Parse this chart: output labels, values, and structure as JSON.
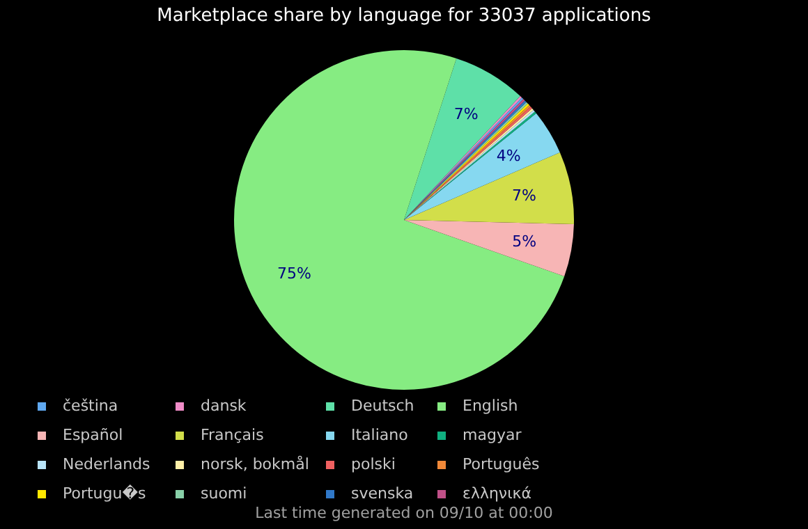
{
  "chart_data": {
    "type": "pie",
    "title": "Marketplace share by language for 33037 applications",
    "categories": [
      "čeština",
      "dansk",
      "Deutsch",
      "English",
      "Español",
      "Français",
      "Italiano",
      "magyar",
      "Nederlands",
      "norsk, bokmål",
      "polski",
      "Português",
      "Portugu�s",
      "suomi",
      "svenska",
      "ελληνικά"
    ],
    "values": [
      0.2,
      0.2,
      7.0,
      74.6,
      5.0,
      6.9,
      4.3,
      0.2,
      0.2,
      0.2,
      0.2,
      0.2,
      0.2,
      0.2,
      0.2,
      0.2
    ],
    "value_labels": [
      null,
      null,
      "7%",
      "75%",
      "5%",
      "7%",
      "4%",
      null,
      null,
      null,
      null,
      null,
      null,
      null,
      null,
      null
    ],
    "colors": [
      "#5fa8f0",
      "#f08cc8",
      "#5ee0a8",
      "#86ec82",
      "#f7b5b5",
      "#d2de4a",
      "#86d8f0",
      "#10b080",
      "#b8e4f8",
      "#fff0a8",
      "#f06060",
      "#f08838",
      "#ffe800",
      "#88d0a8",
      "#3078c8",
      "#c05088"
    ],
    "legend": "bottom",
    "annotations": [
      "Last time generated on 09/10 at 00:00"
    ]
  }
}
